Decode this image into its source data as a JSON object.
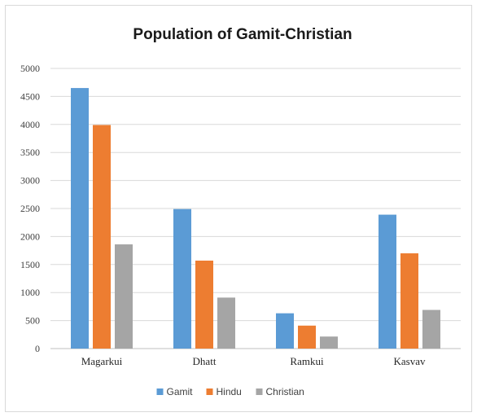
{
  "chart_data": {
    "type": "bar",
    "title": "Population  of Gamit-Christian",
    "xlabel": "",
    "ylabel": "",
    "ylim": [
      0,
      5000
    ],
    "yticks": [
      0,
      500,
      1000,
      1500,
      2000,
      2500,
      3000,
      3500,
      4000,
      4500,
      5000
    ],
    "categories": [
      "Magarkui",
      "Dhatt",
      "Ramkui",
      "Kasvav"
    ],
    "series": [
      {
        "name": "Gamit",
        "values": [
          4650,
          2490,
          630,
          2390
        ],
        "color": "#5b9bd5"
      },
      {
        "name": "Hindu",
        "values": [
          3990,
          1570,
          410,
          1700
        ],
        "color": "#ed7d31"
      },
      {
        "name": "Christian",
        "values": [
          1860,
          910,
          215,
          690
        ],
        "color": "#a5a5a5"
      }
    ],
    "grid": true,
    "legend_position": "bottom"
  }
}
